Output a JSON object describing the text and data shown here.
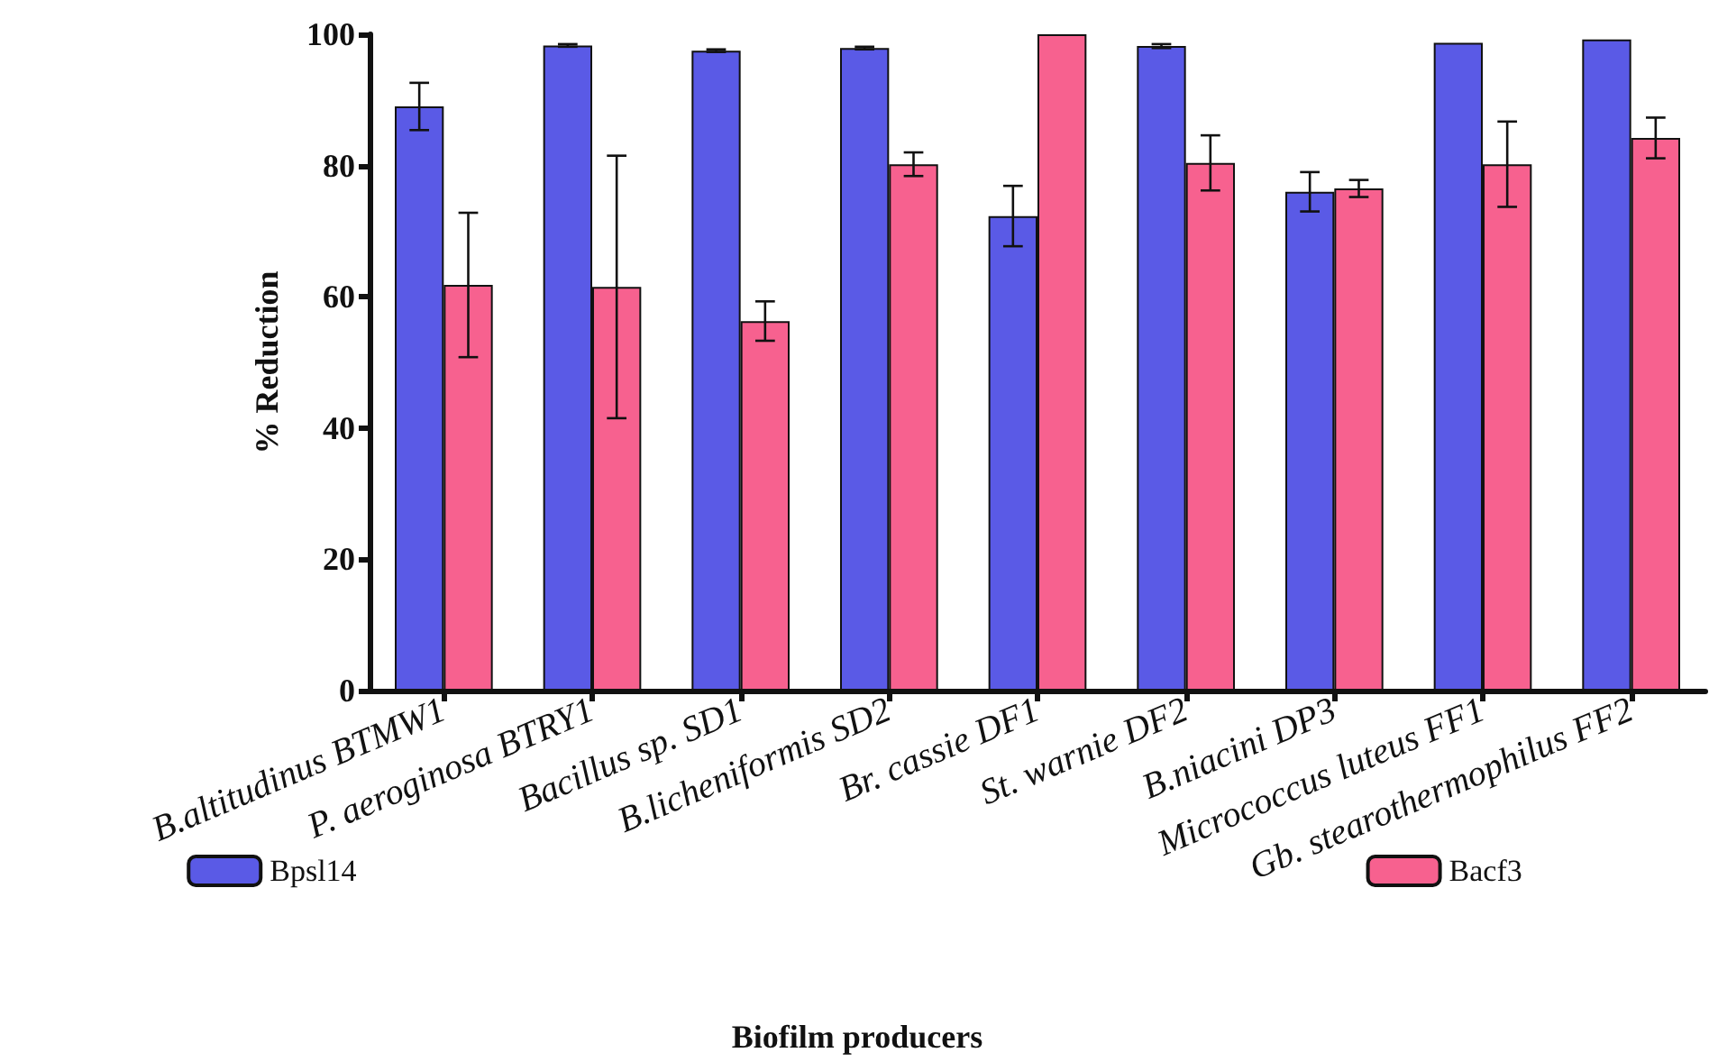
{
  "chart_data": {
    "type": "bar",
    "xlabel": "Biofilm producers",
    "ylabel": "% Reduction",
    "categories": [
      "B.altitudinus BTMW1",
      "P. aeroginosa BTRY1",
      "Bacillus sp. SD1",
      "B.licheniformis SD2",
      "Br. cassie DF1",
      "St. warnie DF2",
      "B.niacini DP3",
      "Micrococcus luteus FF1",
      "Gb. stearothermophilus FF2"
    ],
    "series": [
      {
        "name": "Bpsl14",
        "color": "#5a5ae6",
        "values": [
          89,
          98.3,
          97.5,
          97.9,
          72.3,
          98.2,
          76,
          98.7,
          99.2
        ],
        "errors": [
          3.6,
          0.2,
          0.2,
          0.2,
          4.6,
          0.3,
          3,
          null,
          null
        ]
      },
      {
        "name": "Bacf3",
        "color": "#f7618f",
        "values": [
          61.8,
          61.5,
          56.3,
          80.2,
          100,
          80.4,
          76.5,
          80.2,
          84.2
        ],
        "errors": [
          11,
          20,
          3,
          1.8,
          null,
          4.2,
          1.3,
          6.5,
          3.1
        ]
      }
    ],
    "ylim": [
      0,
      100
    ],
    "yticks": [
      0,
      20,
      40,
      60,
      80,
      100
    ],
    "grid": false,
    "legend": "bottom"
  }
}
